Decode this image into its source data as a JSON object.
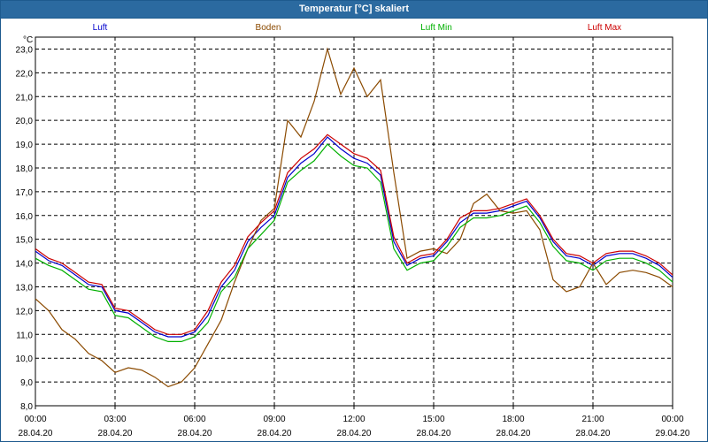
{
  "window": {
    "title": "Temperatur [°C] skaliert"
  },
  "chart_data": {
    "type": "line",
    "title": "Temperatur [°C] skaliert",
    "ylabel": "°C",
    "xlabel": "",
    "ylim": [
      8.0,
      23.5
    ],
    "xlim": [
      0,
      24
    ],
    "grid": true,
    "legend_position": "top",
    "y_ticks": [
      "8,0",
      "9,0",
      "10,0",
      "11,0",
      "12,0",
      "13,0",
      "14,0",
      "15,0",
      "16,0",
      "17,0",
      "18,0",
      "19,0",
      "20,0",
      "21,0",
      "22,0",
      "23,0"
    ],
    "x_ticks": [
      {
        "time": "00:00",
        "date": "28.04.20"
      },
      {
        "time": "03:00",
        "date": "28.04.20"
      },
      {
        "time": "06:00",
        "date": "28.04.20"
      },
      {
        "time": "09:00",
        "date": "28.04.20"
      },
      {
        "time": "12:00",
        "date": "28.04.20"
      },
      {
        "time": "15:00",
        "date": "28.04.20"
      },
      {
        "time": "18:00",
        "date": "28.04.20"
      },
      {
        "time": "21:00",
        "date": "28.04.20"
      },
      {
        "time": "00:00",
        "date": "29.04.20"
      }
    ],
    "series": [
      {
        "name": "Luft",
        "color": "#0000cc",
        "x": [
          0,
          0.5,
          1,
          1.5,
          2,
          2.5,
          3,
          3.5,
          4,
          4.5,
          5,
          5.5,
          6,
          6.5,
          7,
          7.5,
          8,
          8.5,
          9,
          9.5,
          10,
          10.5,
          11,
          11.5,
          12,
          12.5,
          13,
          13.5,
          14,
          14.5,
          15,
          15.5,
          16,
          16.5,
          17,
          17.5,
          18,
          18.5,
          19,
          19.5,
          20,
          20.5,
          21,
          21.5,
          22,
          22.5,
          23,
          23.5,
          24
        ],
        "values": [
          14.5,
          14.1,
          13.9,
          13.5,
          13.1,
          13.0,
          12.0,
          11.9,
          11.5,
          11.1,
          10.9,
          10.9,
          11.1,
          11.8,
          13.0,
          13.7,
          14.9,
          15.5,
          16.0,
          17.6,
          18.2,
          18.6,
          19.3,
          18.8,
          18.4,
          18.2,
          17.7,
          14.9,
          13.9,
          14.2,
          14.3,
          14.9,
          15.7,
          16.1,
          16.1,
          16.2,
          16.4,
          16.6,
          15.9,
          14.9,
          14.3,
          14.2,
          13.9,
          14.3,
          14.4,
          14.4,
          14.2,
          13.9,
          13.4
        ]
      },
      {
        "name": "Boden",
        "color": "#8b4a00",
        "x": [
          0,
          0.5,
          1,
          1.5,
          2,
          2.5,
          3,
          3.5,
          4,
          4.5,
          5,
          5.5,
          6,
          6.5,
          7,
          7.5,
          8,
          8.5,
          9,
          9.5,
          10,
          10.5,
          11,
          11.5,
          12,
          12.5,
          13,
          13.5,
          14,
          14.5,
          15,
          15.5,
          16,
          16.5,
          17,
          17.5,
          18,
          18.5,
          19,
          19.5,
          20,
          20.5,
          21,
          21.5,
          22,
          22.5,
          23,
          23.5,
          24
        ],
        "values": [
          12.5,
          12.0,
          11.2,
          10.8,
          10.2,
          9.9,
          9.4,
          9.6,
          9.5,
          9.2,
          8.8,
          9.0,
          9.6,
          10.6,
          11.6,
          13.2,
          14.6,
          15.8,
          16.3,
          20.0,
          19.3,
          20.8,
          23.0,
          21.1,
          22.2,
          21.0,
          21.7,
          17.8,
          14.2,
          14.5,
          14.6,
          14.4,
          15.0,
          16.5,
          16.9,
          16.2,
          16.1,
          16.2,
          15.4,
          13.3,
          12.8,
          13.0,
          14.0,
          13.1,
          13.6,
          13.7,
          13.6,
          13.4,
          13.0
        ]
      },
      {
        "name": "Luft Min",
        "color": "#00b000",
        "x": [
          0,
          0.5,
          1,
          1.5,
          2,
          2.5,
          3,
          3.5,
          4,
          4.5,
          5,
          5.5,
          6,
          6.5,
          7,
          7.5,
          8,
          8.5,
          9,
          9.5,
          10,
          10.5,
          11,
          11.5,
          12,
          12.5,
          13,
          13.5,
          14,
          14.5,
          15,
          15.5,
          16,
          16.5,
          17,
          17.5,
          18,
          18.5,
          19,
          19.5,
          20,
          20.5,
          21,
          21.5,
          22,
          22.5,
          23,
          23.5,
          24
        ],
        "values": [
          14.2,
          13.9,
          13.7,
          13.3,
          12.9,
          12.8,
          11.8,
          11.7,
          11.3,
          10.9,
          10.7,
          10.7,
          10.9,
          11.5,
          12.8,
          13.4,
          14.6,
          15.2,
          15.8,
          17.4,
          17.9,
          18.3,
          19.0,
          18.5,
          18.1,
          18.0,
          17.4,
          14.6,
          13.7,
          14.0,
          14.1,
          14.7,
          15.5,
          15.9,
          15.9,
          16.0,
          16.2,
          16.4,
          15.7,
          14.7,
          14.1,
          14.0,
          13.7,
          14.1,
          14.2,
          14.2,
          14.0,
          13.7,
          13.2
        ]
      },
      {
        "name": "Luft Max",
        "color": "#cc0000",
        "x": [
          0,
          0.5,
          1,
          1.5,
          2,
          2.5,
          3,
          3.5,
          4,
          4.5,
          5,
          5.5,
          6,
          6.5,
          7,
          7.5,
          8,
          8.5,
          9,
          9.5,
          10,
          10.5,
          11,
          11.5,
          12,
          12.5,
          13,
          13.5,
          14,
          14.5,
          15,
          15.5,
          16,
          16.5,
          17,
          17.5,
          18,
          18.5,
          19,
          19.5,
          20,
          20.5,
          21,
          21.5,
          22,
          22.5,
          23,
          23.5,
          24
        ],
        "values": [
          14.6,
          14.2,
          14.0,
          13.6,
          13.2,
          13.1,
          12.1,
          12.0,
          11.6,
          11.2,
          11.0,
          11.0,
          11.2,
          12.0,
          13.2,
          13.9,
          15.1,
          15.7,
          16.2,
          17.8,
          18.4,
          18.8,
          19.4,
          19.0,
          18.6,
          18.4,
          17.9,
          15.1,
          14.0,
          14.3,
          14.4,
          15.0,
          15.9,
          16.2,
          16.2,
          16.3,
          16.5,
          16.7,
          16.0,
          15.0,
          14.4,
          14.3,
          14.0,
          14.4,
          14.5,
          14.5,
          14.3,
          14.0,
          13.5
        ]
      }
    ]
  }
}
